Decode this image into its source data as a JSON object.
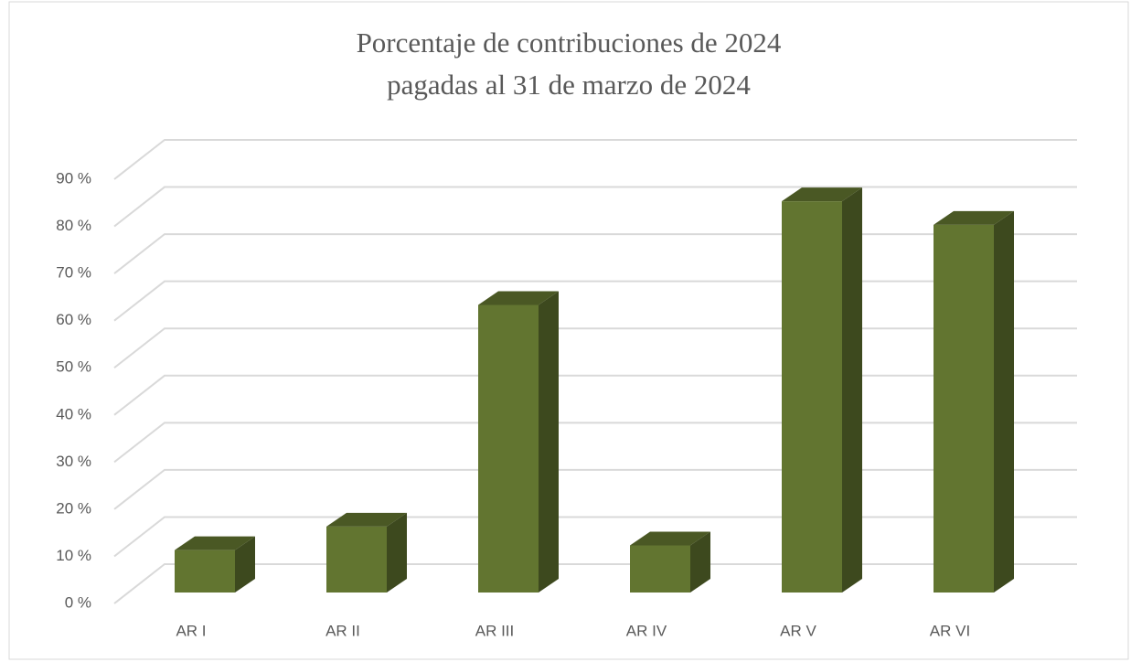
{
  "chart_data": {
    "type": "bar3d",
    "title": [
      "Porcentaje de contribuciones de 2024",
      "pagadas al 31 de marzo de 2024"
    ],
    "categories": [
      "AR I",
      "AR II",
      "AR III",
      "AR IV",
      "AR V",
      "AR VI"
    ],
    "values": [
      9,
      14,
      61,
      10,
      83,
      78
    ],
    "color": "#627530",
    "ylim": [
      0,
      90
    ],
    "yticks": [
      {
        "value": 0,
        "label": "0 %"
      },
      {
        "value": 10,
        "label": "10 %"
      },
      {
        "value": 20,
        "label": "20 %"
      },
      {
        "value": 30,
        "label": "30 %"
      },
      {
        "value": 40,
        "label": "40 %"
      },
      {
        "value": 50,
        "label": "50 %"
      },
      {
        "value": 60,
        "label": "60 %"
      },
      {
        "value": 70,
        "label": "70 %"
      },
      {
        "value": 80,
        "label": "80 %"
      },
      {
        "value": 90,
        "label": "90 %"
      }
    ],
    "grid": true
  }
}
